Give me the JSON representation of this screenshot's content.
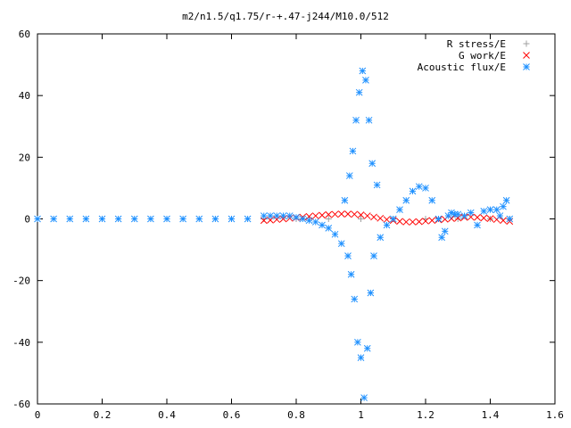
{
  "chart_data": {
    "type": "scatter",
    "title": "m2/n1.5/q1.75/r-+.47-j244/M10.0/512",
    "xlabel": "",
    "ylabel": "",
    "xlim": [
      0,
      1.6
    ],
    "ylim": [
      -60,
      60
    ],
    "xticks": [
      "0",
      "0.2",
      "0.4",
      "0.6",
      "0.8",
      "1",
      "1.2",
      "1.4",
      "1.6"
    ],
    "yticks": [
      "60",
      "40",
      "20",
      "0",
      "-20",
      "-40",
      "-60"
    ],
    "grid": false,
    "legend": "top-right",
    "series": [
      {
        "name": "R stress/E",
        "marker": "plus",
        "color": "#a0a0a0",
        "x": [
          0.7,
          0.8,
          0.9,
          1.0,
          1.1,
          1.2,
          1.3,
          1.4,
          1.46
        ],
        "y": [
          0,
          0,
          0,
          0,
          0,
          0,
          0,
          0,
          0
        ]
      },
      {
        "name": "G work/E",
        "marker": "cross",
        "color": "#ff0000",
        "x": [
          0.7,
          0.72,
          0.74,
          0.76,
          0.78,
          0.8,
          0.82,
          0.84,
          0.86,
          0.88,
          0.9,
          0.92,
          0.94,
          0.96,
          0.98,
          1.0,
          1.02,
          1.04,
          1.06,
          1.08,
          1.1,
          1.12,
          1.14,
          1.16,
          1.18,
          1.2,
          1.22,
          1.24,
          1.26,
          1.28,
          1.3,
          1.32,
          1.34,
          1.36,
          1.38,
          1.4,
          1.42,
          1.44,
          1.46
        ],
        "y": [
          -0.5,
          -0.4,
          -0.2,
          0.0,
          0.2,
          0.4,
          0.6,
          0.8,
          1.0,
          1.2,
          1.4,
          1.5,
          1.6,
          1.6,
          1.5,
          1.3,
          1.0,
          0.6,
          0.2,
          -0.2,
          -0.5,
          -0.8,
          -1.0,
          -1.0,
          -0.9,
          -0.7,
          -0.5,
          -0.3,
          -0.1,
          0.1,
          0.3,
          0.5,
          0.6,
          0.5,
          0.3,
          0.1,
          -0.2,
          -0.5,
          -0.8
        ]
      },
      {
        "name": "Acoustic flux/E",
        "marker": "star",
        "color": "#1e90ff",
        "x": [
          0,
          0.05,
          0.1,
          0.15,
          0.2,
          0.25,
          0.3,
          0.35,
          0.4,
          0.45,
          0.5,
          0.55,
          0.6,
          0.65,
          0.7,
          0.72,
          0.74,
          0.76,
          0.78,
          0.8,
          0.82,
          0.84,
          0.86,
          0.88,
          0.9,
          0.92,
          0.94,
          0.95,
          0.96,
          0.965,
          0.97,
          0.975,
          0.98,
          0.985,
          0.99,
          0.995,
          1.0,
          1.005,
          1.01,
          1.015,
          1.02,
          1.025,
          1.03,
          1.035,
          1.04,
          1.05,
          1.06,
          1.08,
          1.1,
          1.12,
          1.14,
          1.16,
          1.18,
          1.2,
          1.22,
          1.24,
          1.25,
          1.26,
          1.27,
          1.28,
          1.29,
          1.3,
          1.32,
          1.34,
          1.36,
          1.38,
          1.4,
          1.42,
          1.43,
          1.44,
          1.45,
          1.46
        ],
        "y": [
          0,
          0,
          0,
          0,
          0,
          0,
          0,
          0,
          0,
          0,
          0,
          0,
          0,
          0,
          1.0,
          1.0,
          1.0,
          1.0,
          1.0,
          0.5,
          0.0,
          -0.5,
          -1.0,
          -2.0,
          -3.0,
          -5.0,
          -8.0,
          6.0,
          -12.0,
          14.0,
          -18.0,
          22.0,
          -26.0,
          32.0,
          -40.0,
          41.0,
          -45.0,
          48.0,
          -58.0,
          45.0,
          -42.0,
          32.0,
          -24.0,
          18.0,
          -12.0,
          11.0,
          -6.0,
          -2.0,
          0.0,
          3.0,
          6.0,
          9.0,
          10.5,
          10.0,
          6.0,
          0.0,
          -6.0,
          -4.0,
          1.0,
          2.0,
          1.5,
          1.5,
          1.0,
          2.0,
          -2.0,
          2.5,
          3.0,
          3.0,
          1.0,
          4.0,
          6.0,
          0.0
        ]
      }
    ]
  }
}
